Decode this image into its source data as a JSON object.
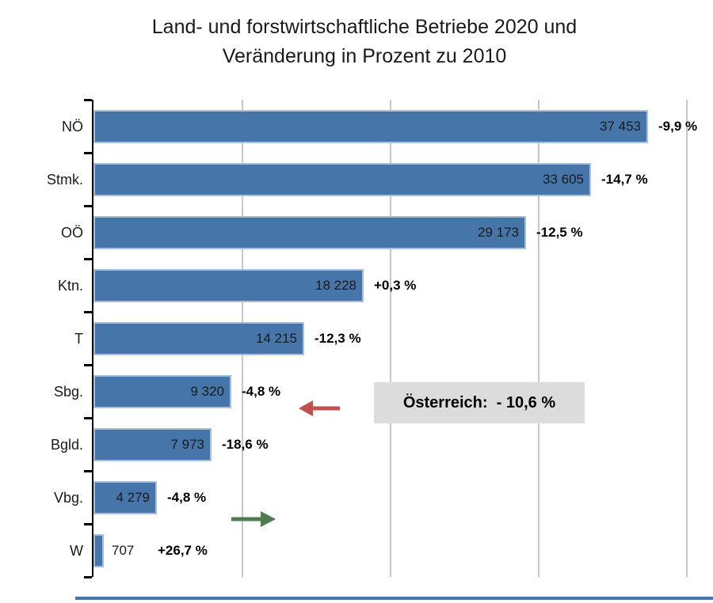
{
  "title": {
    "line1": "Land- und forstwirtschaftliche Betriebe 2020 und",
    "line2": "Veränderung in Prozent zu 2010"
  },
  "chart_data": {
    "type": "bar",
    "orientation": "horizontal",
    "title": "Land- und forstwirtschaftliche Betriebe 2020 und Veränderung in Prozent zu 2010",
    "categories": [
      "NÖ",
      "Stmk.",
      "OÖ",
      "Ktn.",
      "T",
      "Sbg.",
      "Bgld.",
      "Vbg.",
      "W"
    ],
    "series": [
      {
        "name": "Betriebe 2020",
        "values": [
          37453,
          33605,
          29173,
          18228,
          14215,
          9320,
          7973,
          4279,
          707
        ],
        "value_labels": [
          "37 453",
          "33 605",
          "29 173",
          "18 228",
          "14 215",
          "9 320",
          "7 973",
          "4 279",
          "707"
        ]
      },
      {
        "name": "Veränderung in Prozent zu 2010",
        "values": [
          -9.9,
          -14.7,
          -12.5,
          0.3,
          -12.3,
          -4.8,
          -18.6,
          -4.8,
          26.7
        ],
        "value_labels": [
          "-9,9 %",
          "-14,7 %",
          "-12,5 %",
          "+0,3 %",
          "-12,3 %",
          "-4,8 %",
          "-18,6 %",
          "-4,8 %",
          "+26,7 %"
        ]
      }
    ],
    "xlim": [
      0,
      40000
    ],
    "gridline_step": 10000,
    "x_tick_labels": "none",
    "legend": "none",
    "annotation": {
      "text": "Österreich:  - 10,6 %",
      "label": "Österreich:",
      "value": "- 10,6 %"
    },
    "arrows": [
      {
        "name": "red-left-arrow",
        "direction": "left",
        "color": "#c0504d",
        "near_category": "Sbg."
      },
      {
        "name": "green-right-arrow",
        "direction": "right",
        "color": "#4e7b51",
        "near_category": "Vbg."
      }
    ],
    "colors": {
      "bar": "#4575a9",
      "bar_border": "#a7bfdc",
      "gridline": "#c9c9c9",
      "axis": "#000000",
      "annotation_bg": "#dcdcdc",
      "footer_rule": "#4575a9",
      "text": "#1a1a1a"
    }
  }
}
